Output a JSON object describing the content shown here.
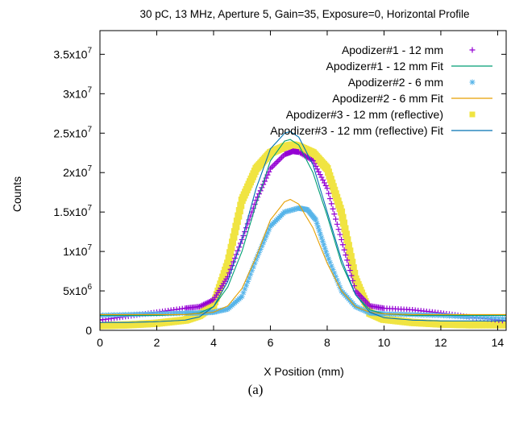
{
  "caption": "(a)",
  "chart_data": {
    "type": "scatter",
    "title": "30 pC, 13 MHz, Aperture 5, Gain=35, Exposure=0, Horizontal Profile",
    "xlabel": "X Position (mm)",
    "ylabel": "Counts",
    "xlim": [
      0,
      14.3
    ],
    "ylim": [
      0,
      38000000
    ],
    "grid": false,
    "legend_position": "top-right",
    "x_ticks": [
      {
        "value": 0,
        "label": "0"
      },
      {
        "value": 2,
        "label": "2"
      },
      {
        "value": 4,
        "label": "4"
      },
      {
        "value": 6,
        "label": "6"
      },
      {
        "value": 8,
        "label": "8"
      },
      {
        "value": 10,
        "label": "10"
      },
      {
        "value": 12,
        "label": "12"
      },
      {
        "value": 14,
        "label": "14"
      }
    ],
    "y_ticks": [
      {
        "value": 0,
        "mantissa": "0",
        "exponent": ""
      },
      {
        "value": 5000000,
        "mantissa": "5x10",
        "exponent": "6"
      },
      {
        "value": 10000000,
        "mantissa": "1x10",
        "exponent": "7"
      },
      {
        "value": 15000000,
        "mantissa": "1.5x10",
        "exponent": "7"
      },
      {
        "value": 20000000,
        "mantissa": "2x10",
        "exponent": "7"
      },
      {
        "value": 25000000,
        "mantissa": "2.5x10",
        "exponent": "7"
      },
      {
        "value": 30000000,
        "mantissa": "3x10",
        "exponent": "7"
      },
      {
        "value": 35000000,
        "mantissa": "3.5x10",
        "exponent": "7"
      }
    ],
    "series": [
      {
        "name": "Apodizer#1 - 12 mm",
        "style": "plus",
        "color": "#9400d3",
        "x": [
          0,
          1,
          2,
          3,
          3.5,
          4,
          4.5,
          5,
          5.5,
          6,
          6.5,
          6.8,
          7,
          7.5,
          8,
          8.5,
          9,
          9.5,
          10,
          11,
          12,
          13,
          14.3
        ],
        "y": [
          1300000,
          1800000,
          2300000,
          2800000,
          3000000,
          3900000,
          6800000,
          11500000,
          16500000,
          20500000,
          22300000,
          22700000,
          22600000,
          21500000,
          18000000,
          11500000,
          5000000,
          3100000,
          2800000,
          2600000,
          2200000,
          1700000,
          1200000
        ]
      },
      {
        "name": "Apodizer#1 - 12 mm Fit",
        "style": "line",
        "color": "#009e73",
        "x": [
          0,
          1,
          2,
          3,
          3.5,
          4,
          4.5,
          5,
          5.5,
          6,
          6.5,
          6.7,
          7,
          7.5,
          8,
          8.5,
          9,
          9.5,
          10,
          11,
          12,
          13,
          14.3
        ],
        "y": [
          1900000,
          1900000,
          1900000,
          2000000,
          2200000,
          3000000,
          5500000,
          10000000,
          16000000,
          21500000,
          24000000,
          24200000,
          23500000,
          20000000,
          14500000,
          8500000,
          4500000,
          2600000,
          2100000,
          1900000,
          1900000,
          1900000,
          1900000
        ]
      },
      {
        "name": "Apodizer#2 - 6 mm",
        "style": "star",
        "color": "#56b4e9",
        "x": [
          0,
          1,
          2,
          3,
          3.5,
          4,
          4.5,
          5,
          5.5,
          6,
          6.5,
          7,
          7.3,
          7.6,
          8,
          8.5,
          9,
          9.5,
          10,
          11,
          12,
          13,
          14.3
        ],
        "y": [
          1900000,
          2000000,
          2100000,
          2200000,
          2200000,
          2300000,
          2700000,
          4300000,
          9000000,
          13200000,
          15000000,
          15500000,
          15300000,
          14000000,
          9500000,
          5000000,
          3000000,
          2200000,
          2100000,
          2000000,
          1900000,
          1700000,
          1500000
        ]
      },
      {
        "name": "Apodizer#2 - 6 mm Fit",
        "style": "line",
        "color": "#e69f00",
        "x": [
          0,
          1,
          2,
          3,
          4,
          4.5,
          5,
          5.5,
          6,
          6.5,
          6.7,
          7,
          7.5,
          8,
          8.5,
          9,
          9.5,
          10,
          11,
          12,
          13,
          14.3
        ],
        "y": [
          2000000,
          2000000,
          2000000,
          2000000,
          2300000,
          3100000,
          5300000,
          9300000,
          14000000,
          16300000,
          16600000,
          16000000,
          13000000,
          8500000,
          5000000,
          3000000,
          2300000,
          2100000,
          2000000,
          2000000,
          2000000,
          2000000
        ]
      },
      {
        "name": "Apodizer#3 - 12 mm (reflective)",
        "style": "square",
        "color": "#f0e442",
        "x": [
          0,
          1,
          2,
          3,
          3.5,
          4,
          4.5,
          5,
          5.5,
          6,
          6.5,
          6.8,
          7,
          7.5,
          8,
          8.5,
          9,
          9.5,
          10,
          11,
          12,
          13,
          14.3
        ],
        "y": [
          600000,
          700000,
          900000,
          1300000,
          1900000,
          3200000,
          8500000,
          16500000,
          20500000,
          22500000,
          23300000,
          23500000,
          23300000,
          22500000,
          20500000,
          15000000,
          6500000,
          2200000,
          1400000,
          1000000,
          800000,
          700000,
          700000
        ]
      },
      {
        "name": "Apodizer#3 - 12 mm (reflective) Fit",
        "style": "line",
        "color": "#0072b2",
        "x": [
          0,
          1,
          2,
          3,
          3.5,
          4,
          4.5,
          5,
          5.5,
          6,
          6.5,
          6.7,
          7,
          7.5,
          8,
          8.5,
          9,
          9.5,
          10,
          11,
          12,
          13,
          14.3
        ],
        "y": [
          1000000,
          1000000,
          1100000,
          1300000,
          1700000,
          3000000,
          6200000,
          11500000,
          18000000,
          23000000,
          25000000,
          25200000,
          24500000,
          21000000,
          15000000,
          9000000,
          4500000,
          2300000,
          1600000,
          1300000,
          1200000,
          1200000,
          1200000
        ]
      }
    ]
  }
}
